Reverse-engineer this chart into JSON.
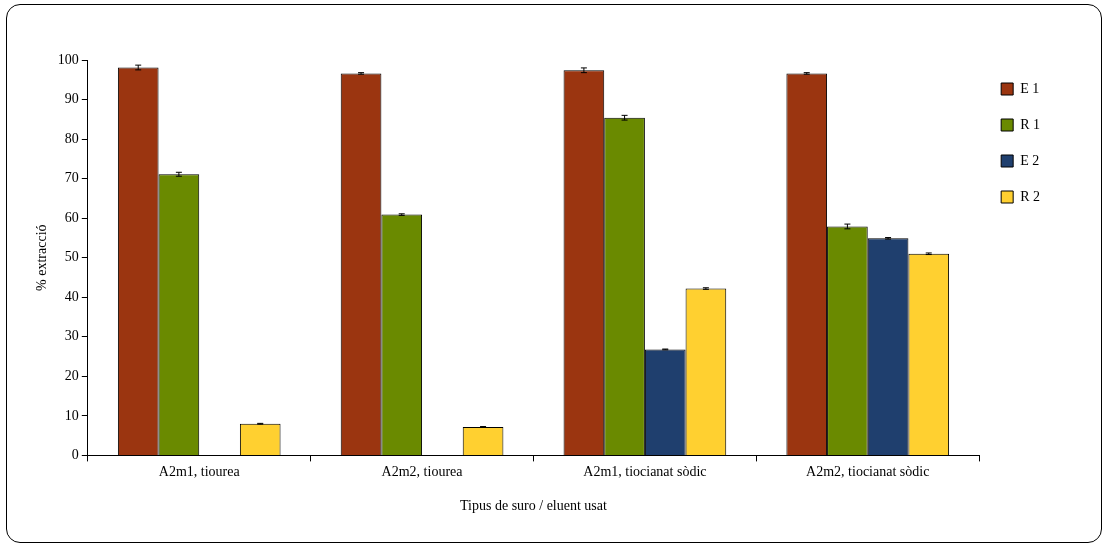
{
  "chart_data": {
    "type": "bar",
    "xlabel": "Tipus de suro / eluent usat",
    "ylabel": "% extracció",
    "categories": [
      "A2m1, tiourea",
      "A2m2, tiourea",
      "A2m1, tiocianat sòdic",
      "A2m2, tiocianat sòdic"
    ],
    "series": [
      {
        "name": "E 1",
        "color": "#9b3510",
        "values": [
          98.1,
          96.6,
          97.4,
          96.6
        ],
        "errors": [
          0.6,
          0.2,
          0.6,
          0.2
        ]
      },
      {
        "name": "R 1",
        "color": "#6a8a00",
        "values": [
          71.1,
          60.9,
          85.4,
          57.9
        ],
        "errors": [
          0.5,
          0.2,
          0.6,
          0.6
        ]
      },
      {
        "name": "E 2",
        "color": "#1f3f6e",
        "values": [
          0,
          0,
          26.8,
          54.9
        ],
        "errors": [
          null,
          null,
          0.1,
          0.2
        ]
      },
      {
        "name": "R 2",
        "color": "#ffd030",
        "values": [
          8.0,
          7.2,
          42.2,
          51.0
        ],
        "errors": [
          0.1,
          0.1,
          0.2,
          0.2
        ]
      }
    ],
    "ylim": [
      0,
      100
    ],
    "yticks": [
      0,
      10,
      20,
      30,
      40,
      50,
      60,
      70,
      80,
      90,
      100
    ],
    "grid": false,
    "legend": "right"
  }
}
